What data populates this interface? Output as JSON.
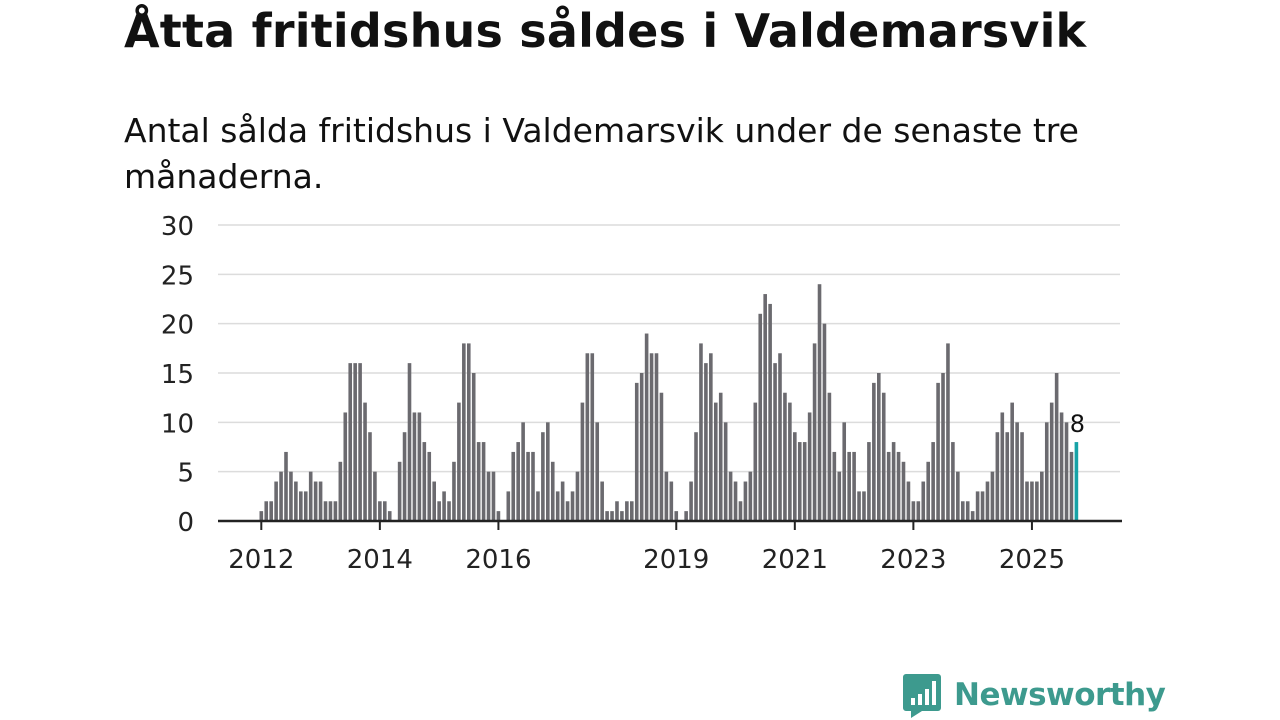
{
  "header": {
    "title": "Åtta fritidshus såldes i Valdemarsvik",
    "subtitle": "Antal sålda fritidshus i Valdemarsvik under de senaste tre månaderna."
  },
  "brand": {
    "name": "Newsworthy",
    "icon": "newsworthy-logo-icon",
    "color": "#3d9a8e"
  },
  "chart_data": {
    "type": "bar",
    "title": "Åtta fritidshus såldes i Valdemarsvik",
    "subtitle": "Antal sålda fritidshus i Valdemarsvik under de senaste tre månaderna.",
    "xlabel": "",
    "ylabel": "",
    "ylim": [
      0,
      30
    ],
    "yticks": [
      0,
      5,
      10,
      15,
      20,
      25,
      30
    ],
    "grid": true,
    "legend": "none",
    "x_tick_labels": [
      "2012",
      "2014",
      "2016",
      "2019",
      "2021",
      "2023",
      "2025"
    ],
    "start": "2012-01",
    "frequency": "monthly",
    "bar_color": "#6b6a6f",
    "highlight_color": "#17a2a6",
    "highlight_label": "8",
    "values": [
      1,
      2,
      2,
      4,
      5,
      7,
      5,
      4,
      3,
      3,
      5,
      4,
      4,
      2,
      2,
      2,
      6,
      11,
      16,
      16,
      16,
      12,
      9,
      5,
      2,
      2,
      1,
      0,
      6,
      9,
      16,
      11,
      11,
      8,
      7,
      4,
      2,
      3,
      2,
      6,
      12,
      18,
      18,
      15,
      8,
      8,
      5,
      5,
      1,
      0,
      3,
      7,
      8,
      10,
      7,
      7,
      3,
      9,
      10,
      6,
      3,
      4,
      2,
      3,
      5,
      12,
      17,
      17,
      10,
      4,
      1,
      1,
      2,
      1,
      2,
      2,
      14,
      15,
      19,
      17,
      17,
      13,
      5,
      4,
      1,
      0,
      1,
      4,
      9,
      18,
      16,
      17,
      12,
      13,
      10,
      5,
      4,
      2,
      4,
      5,
      12,
      21,
      23,
      22,
      16,
      17,
      13,
      12,
      9,
      8,
      8,
      11,
      18,
      24,
      20,
      13,
      7,
      5,
      10,
      7,
      7,
      3,
      3,
      8,
      14,
      15,
      13,
      7,
      8,
      7,
      6,
      4,
      2,
      2,
      4,
      6,
      8,
      14,
      15,
      18,
      8,
      5,
      2,
      2,
      1,
      3,
      3,
      4,
      5,
      9,
      11,
      9,
      12,
      10,
      9,
      4,
      4,
      4,
      5,
      10,
      12,
      15,
      11,
      10,
      7,
      8
    ]
  }
}
